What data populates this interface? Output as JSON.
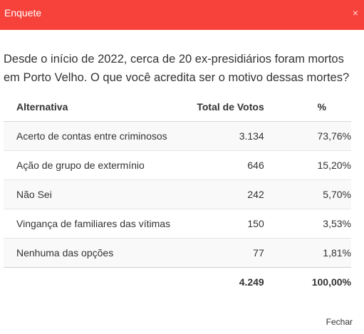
{
  "modal": {
    "title": "Enquete",
    "close_symbol": "×",
    "close_link": "Fechar"
  },
  "poll": {
    "question": "Desde o início de 2022, cerca de 20 ex-presidiários foram mortos em Porto Velho. O que você acredita ser o motivo dessas mortes?",
    "columns": [
      "Alternativa",
      "Total de Votos",
      "%"
    ],
    "rows": [
      {
        "option": "Acerto de contas entre criminosos",
        "votes": "3.134",
        "percent": "73,76%"
      },
      {
        "option": "Ação de grupo de extermínio",
        "votes": "646",
        "percent": "15,20%"
      },
      {
        "option": "Não Sei",
        "votes": "242",
        "percent": "5,70%"
      },
      {
        "option": "Vingança de familiares das vítimas",
        "votes": "150",
        "percent": "3,53%"
      },
      {
        "option": "Nenhuma das opções",
        "votes": "77",
        "percent": "1,81%"
      }
    ],
    "total": {
      "votes": "4.249",
      "percent": "100,00%"
    }
  },
  "colors": {
    "header_bg": "#f7423b",
    "header_text": "#ffffff"
  },
  "icons": {
    "close": "close-icon"
  }
}
